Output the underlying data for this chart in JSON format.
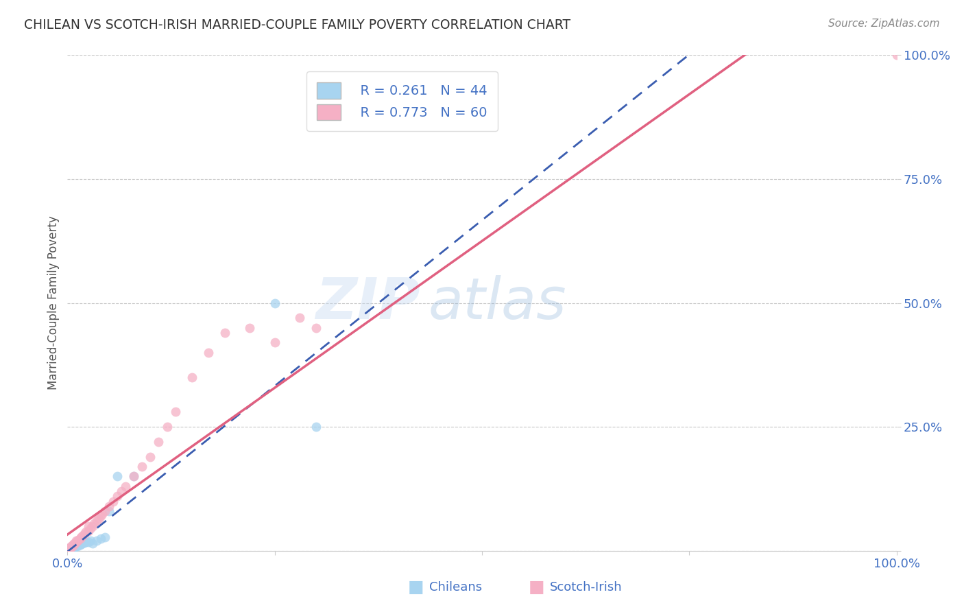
{
  "title": "CHILEAN VS SCOTCH-IRISH MARRIED-COUPLE FAMILY POVERTY CORRELATION CHART",
  "source": "Source: ZipAtlas.com",
  "ylabel": "Married-Couple Family Poverty",
  "xlim": [
    0,
    1
  ],
  "ylim": [
    0,
    1
  ],
  "watermark_zip": "ZIP",
  "watermark_atlas": "atlas",
  "chilean_R": 0.261,
  "chilean_N": 44,
  "scotch_irish_R": 0.773,
  "scotch_irish_N": 60,
  "chilean_color": "#A8D4F0",
  "scotch_irish_color": "#F5B0C5",
  "chilean_line_color": "#3A5DB0",
  "scotch_irish_line_color": "#E06080",
  "ch_x": [
    0.0,
    0.0,
    0.0,
    0.0,
    0.0,
    0.0,
    0.0,
    0.001,
    0.001,
    0.002,
    0.002,
    0.002,
    0.003,
    0.003,
    0.004,
    0.005,
    0.005,
    0.005,
    0.006,
    0.007,
    0.007,
    0.008,
    0.008,
    0.009,
    0.01,
    0.01,
    0.012,
    0.013,
    0.015,
    0.016,
    0.018,
    0.02,
    0.022,
    0.025,
    0.028,
    0.03,
    0.035,
    0.04,
    0.045,
    0.05,
    0.06,
    0.08,
    0.25,
    0.3
  ],
  "ch_y": [
    0.0,
    0.0,
    0.0,
    0.0,
    0.001,
    0.002,
    0.003,
    0.001,
    0.002,
    0.003,
    0.004,
    0.005,
    0.003,
    0.006,
    0.004,
    0.005,
    0.006,
    0.008,
    0.006,
    0.007,
    0.008,
    0.006,
    0.009,
    0.008,
    0.01,
    0.012,
    0.01,
    0.013,
    0.012,
    0.014,
    0.015,
    0.016,
    0.018,
    0.018,
    0.02,
    0.015,
    0.02,
    0.025,
    0.028,
    0.08,
    0.15,
    0.15,
    0.5,
    0.25
  ],
  "si_x": [
    0.0,
    0.0,
    0.0,
    0.0,
    0.0,
    0.0,
    0.001,
    0.001,
    0.002,
    0.002,
    0.003,
    0.003,
    0.004,
    0.004,
    0.005,
    0.005,
    0.006,
    0.006,
    0.007,
    0.008,
    0.008,
    0.009,
    0.01,
    0.01,
    0.012,
    0.013,
    0.015,
    0.016,
    0.018,
    0.02,
    0.022,
    0.025,
    0.025,
    0.028,
    0.03,
    0.032,
    0.035,
    0.038,
    0.04,
    0.042,
    0.045,
    0.05,
    0.055,
    0.06,
    0.065,
    0.07,
    0.08,
    0.09,
    0.1,
    0.11,
    0.12,
    0.13,
    0.15,
    0.17,
    0.19,
    0.22,
    0.25,
    0.28,
    0.3,
    1.0
  ],
  "si_y": [
    0.0,
    0.0,
    0.0,
    0.001,
    0.002,
    0.003,
    0.002,
    0.003,
    0.004,
    0.005,
    0.005,
    0.007,
    0.006,
    0.008,
    0.008,
    0.01,
    0.01,
    0.012,
    0.012,
    0.013,
    0.015,
    0.015,
    0.018,
    0.02,
    0.02,
    0.022,
    0.025,
    0.028,
    0.03,
    0.035,
    0.038,
    0.04,
    0.05,
    0.045,
    0.05,
    0.055,
    0.06,
    0.065,
    0.07,
    0.075,
    0.08,
    0.09,
    0.1,
    0.11,
    0.12,
    0.13,
    0.15,
    0.17,
    0.19,
    0.22,
    0.25,
    0.28,
    0.35,
    0.4,
    0.44,
    0.45,
    0.42,
    0.47,
    0.45,
    1.0
  ],
  "background_color": "#FFFFFF",
  "grid_color": "#C8C8C8",
  "title_color": "#333333",
  "source_color": "#888888",
  "tick_color": "#4472C4"
}
